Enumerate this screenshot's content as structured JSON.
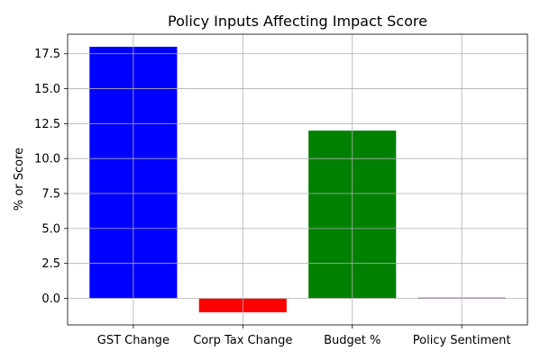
{
  "chart_data": {
    "type": "bar",
    "title": "Policy Inputs Affecting Impact Score",
    "xlabel": "",
    "ylabel": "% or Score",
    "categories": [
      "GST Change",
      "Corp Tax Change",
      "Budget %",
      "Policy Sentiment"
    ],
    "values": [
      18,
      -1,
      12,
      0.05
    ],
    "colors": [
      "#0000ff",
      "#ff0000",
      "#008000",
      "#800080"
    ],
    "ylim": [
      -1.9,
      18.9
    ],
    "yticks": [
      0.0,
      2.5,
      5.0,
      7.5,
      10.0,
      12.5,
      15.0,
      17.5
    ],
    "ytick_labels": [
      "0.0",
      "2.5",
      "5.0",
      "7.5",
      "10.0",
      "12.5",
      "15.0",
      "17.5"
    ],
    "grid": true,
    "legend": "none"
  }
}
